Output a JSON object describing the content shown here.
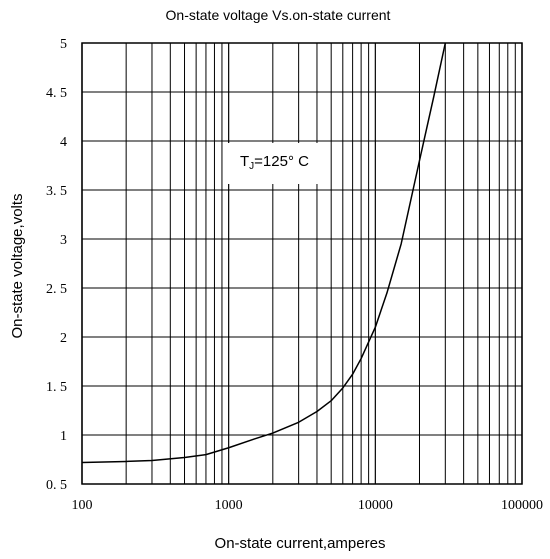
{
  "chart_data": {
    "type": "line",
    "title": "On-state voltage  Vs.on-state current",
    "xlabel": "On-state current,amperes",
    "ylabel": "On-state voltage,volts",
    "x_scale": "log",
    "xlim": [
      100,
      100000
    ],
    "ylim": [
      0.5,
      5
    ],
    "grid": true,
    "x_ticks": [
      "100",
      "1000",
      "10000",
      "100000"
    ],
    "y_ticks": [
      "0. 5",
      "1",
      "1. 5",
      "2",
      "2. 5",
      "3",
      "3. 5",
      "4",
      "4. 5",
      "5"
    ],
    "annotation": {
      "main": "T",
      "sub": "J",
      "rest": "=125° C"
    },
    "series": [
      {
        "x": [
          100,
          200,
          300,
          500,
          700,
          1000,
          1500,
          2000,
          3000,
          4000,
          5000,
          6000,
          7000,
          8000,
          10000,
          12000,
          15000,
          20000,
          25000,
          30000
        ],
        "y": [
          0.72,
          0.73,
          0.74,
          0.77,
          0.8,
          0.87,
          0.96,
          1.02,
          1.13,
          1.24,
          1.35,
          1.48,
          1.62,
          1.78,
          2.1,
          2.45,
          2.95,
          3.8,
          4.45,
          5.0
        ]
      }
    ]
  }
}
